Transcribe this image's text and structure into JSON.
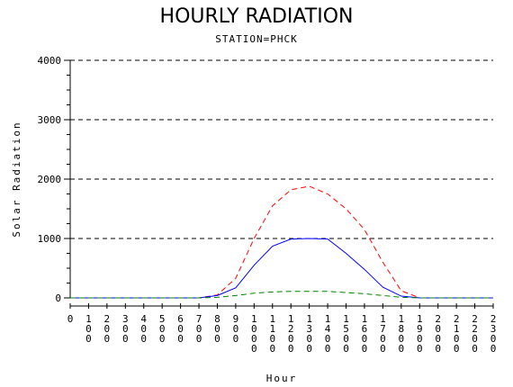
{
  "chart_data": {
    "type": "line",
    "title": "HOURLY RADIATION",
    "subtitle": "STATION=PHCK",
    "xlabel": "Hour",
    "ylabel": "Solar Radiation",
    "ylim": [
      0,
      4000
    ],
    "yticks": [
      0,
      1000,
      2000,
      3000,
      4000
    ],
    "grid": "dashed horizontal at major y ticks",
    "x": [
      0,
      100,
      200,
      300,
      400,
      500,
      600,
      700,
      800,
      900,
      1000,
      1100,
      1200,
      1300,
      1400,
      1500,
      1600,
      1700,
      1800,
      1900,
      2000,
      2100,
      2200,
      2300
    ],
    "x_tick_labels": [
      "0",
      "100",
      "200",
      "300",
      "400",
      "500",
      "600",
      "700",
      "800",
      "900",
      "1000",
      "1100",
      "1200",
      "1300",
      "1400",
      "1500",
      "1600",
      "1700",
      "1800",
      "1900",
      "2000",
      "2100",
      "2200",
      "2300"
    ],
    "series": [
      {
        "color": "#ff0000",
        "style": "dashed",
        "values": [
          0,
          0,
          0,
          0,
          0,
          0,
          0,
          0,
          50,
          330,
          1000,
          1550,
          1820,
          1880,
          1750,
          1500,
          1150,
          600,
          120,
          0,
          0,
          0,
          0,
          0
        ]
      },
      {
        "color": "#0000ff",
        "style": "solid",
        "values": [
          0,
          0,
          0,
          0,
          0,
          0,
          0,
          0,
          40,
          170,
          550,
          870,
          990,
          1000,
          990,
          750,
          480,
          180,
          30,
          0,
          0,
          0,
          0,
          0
        ]
      },
      {
        "color": "#008000",
        "style": "dashed",
        "values": [
          0,
          0,
          0,
          0,
          0,
          0,
          0,
          0,
          10,
          40,
          80,
          100,
          110,
          110,
          110,
          90,
          70,
          40,
          10,
          0,
          0,
          0,
          0,
          0
        ]
      }
    ]
  }
}
